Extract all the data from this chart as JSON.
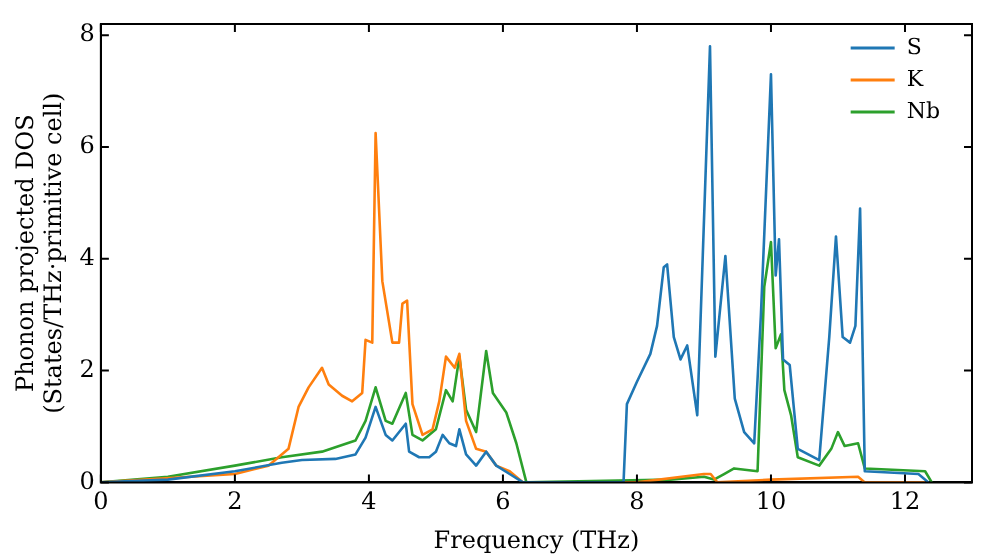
{
  "chart_data": {
    "type": "line",
    "xlabel": "Frequency (THz)",
    "ylabel": "Phonon projected DOS\n(States/THz·primitive cell)",
    "xlim": [
      0,
      13
    ],
    "xticks": [
      0,
      2,
      4,
      6,
      8,
      10,
      12
    ],
    "ylim": [
      0,
      8.2
    ],
    "yticks": [
      0,
      2,
      4,
      6,
      8
    ],
    "grid": false,
    "legend": "top right",
    "marker": "none",
    "line_style": "solid",
    "series": [
      {
        "name": "S",
        "color": "#1f77b4",
        "x": [
          0,
          1,
          2,
          2.7,
          3,
          3.5,
          3.8,
          3.95,
          4.1,
          4.25,
          4.35,
          4.55,
          4.6,
          4.75,
          4.9,
          5,
          5.1,
          5.2,
          5.3,
          5.35,
          5.45,
          5.6,
          5.75,
          5.9,
          6.1,
          6.3,
          7.8,
          7.85,
          8,
          8.2,
          8.3,
          8.4,
          8.45,
          8.55,
          8.65,
          8.75,
          8.9,
          9.09,
          9.17,
          9.32,
          9.46,
          9.6,
          9.75,
          9.85,
          10,
          10.07,
          10.12,
          10.18,
          10.28,
          10.4,
          10.72,
          10.87,
          10.97,
          11.07,
          11.18,
          11.26,
          11.33,
          11.4,
          12.2,
          12.35
        ],
        "values": [
          0,
          0.05,
          0.2,
          0.35,
          0.4,
          0.42,
          0.5,
          0.8,
          1.35,
          0.85,
          0.75,
          1.05,
          0.55,
          0.45,
          0.45,
          0.55,
          0.85,
          0.7,
          0.65,
          0.95,
          0.5,
          0.3,
          0.55,
          0.3,
          0.15,
          0,
          0,
          1.4,
          1.8,
          2.3,
          2.8,
          3.85,
          3.9,
          2.6,
          2.2,
          2.45,
          1.2,
          7.8,
          2.25,
          4.05,
          1.5,
          0.9,
          0.7,
          3,
          7.3,
          3.7,
          4.35,
          2.2,
          2.1,
          0.6,
          0.4,
          2.6,
          4.4,
          2.6,
          2.5,
          2.8,
          4.9,
          0.2,
          0.15,
          0
        ]
      },
      {
        "name": "K",
        "color": "#ff7f0e",
        "x": [
          0,
          2,
          2.5,
          2.8,
          2.95,
          3.1,
          3.3,
          3.4,
          3.6,
          3.75,
          3.9,
          3.95,
          4.05,
          4.1,
          4.2,
          4.35,
          4.45,
          4.5,
          4.57,
          4.65,
          4.8,
          4.95,
          5.05,
          5.15,
          5.28,
          5.35,
          5.45,
          5.6,
          5.75,
          5.9,
          6.1,
          6.3,
          8,
          9,
          9.1,
          9.2,
          10,
          11.3,
          11.4,
          12.3
        ],
        "values": [
          0,
          0.15,
          0.3,
          0.6,
          1.35,
          1.7,
          2.05,
          1.75,
          1.55,
          1.45,
          1.6,
          2.55,
          2.5,
          6.25,
          3.6,
          2.5,
          2.5,
          3.2,
          3.25,
          1.4,
          0.85,
          0.95,
          1.45,
          2.25,
          2.05,
          2.3,
          1.1,
          0.6,
          0.55,
          0.3,
          0.2,
          0,
          0,
          0.15,
          0.15,
          0,
          0.05,
          0.1,
          0,
          0
        ]
      },
      {
        "name": "Nb",
        "color": "#2ca02c",
        "x": [
          0,
          1,
          2,
          2.7,
          3.3,
          3.8,
          3.95,
          4.1,
          4.25,
          4.35,
          4.55,
          4.65,
          4.8,
          5,
          5.15,
          5.25,
          5.35,
          5.45,
          5.6,
          5.75,
          5.85,
          6.05,
          6.2,
          6.35,
          8.5,
          9,
          9.15,
          9.3,
          9.45,
          9.8,
          9.9,
          10,
          10.07,
          10.15,
          10.2,
          10.3,
          10.4,
          10.72,
          10.9,
          11,
          11.1,
          11.3,
          11.4,
          12.3,
          12.4
        ],
        "values": [
          0,
          0.1,
          0.3,
          0.45,
          0.55,
          0.75,
          1.1,
          1.7,
          1.1,
          1.05,
          1.6,
          0.85,
          0.75,
          0.95,
          1.65,
          1.45,
          2.25,
          1.3,
          0.9,
          2.35,
          1.6,
          1.25,
          0.7,
          0,
          0.05,
          0.1,
          0.05,
          0.15,
          0.25,
          0.2,
          3.5,
          4.3,
          2.4,
          2.65,
          1.65,
          1.2,
          0.45,
          0.3,
          0.6,
          0.9,
          0.65,
          0.7,
          0.25,
          0.2,
          0
        ]
      }
    ]
  }
}
